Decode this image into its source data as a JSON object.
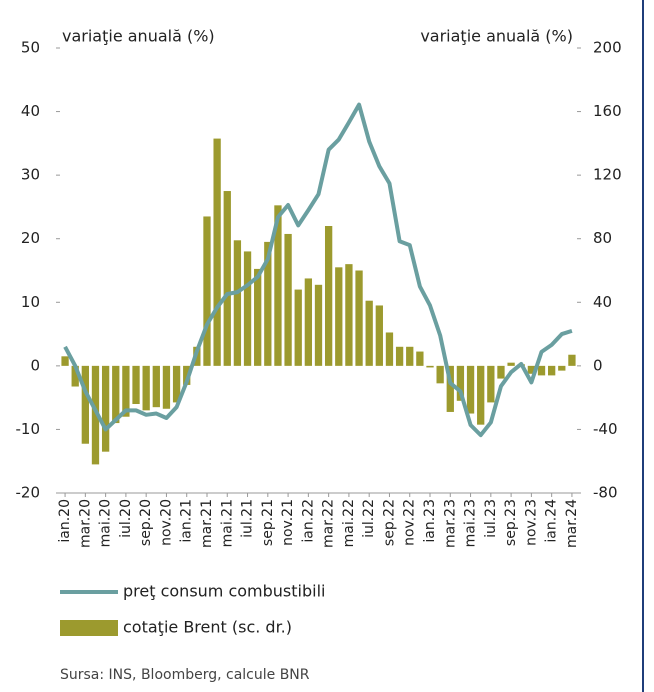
{
  "chart_data": {
    "type": "bar-line",
    "y_label": "variaţie anuală (%)",
    "y2_label": "variaţie anuală (%)",
    "source": "Sursa: INS, Bloomberg, calcule BNR",
    "categories": [
      "ian.20",
      null,
      "mar.20",
      null,
      "mai.20",
      null,
      "iul.20",
      null,
      "sep.20",
      null,
      "nov.20",
      null,
      "ian.21",
      null,
      "mar.21",
      null,
      "mai.21",
      null,
      "iul.21",
      null,
      "sep.21",
      null,
      "nov.21",
      null,
      "ian.22",
      null,
      "mar.22",
      null,
      "mai.22",
      null,
      "iul.22",
      null,
      "sep.22",
      null,
      "nov.22",
      null,
      "ian.23",
      null,
      "mar.23",
      null,
      "mai.23",
      null,
      "iul.23",
      null,
      "sep.23",
      null,
      "nov.23",
      null,
      "ian.24",
      null,
      "mar.24"
    ],
    "series": [
      {
        "name": "preţ consum combustibili",
        "color": "#6a9fa0",
        "kind": "line",
        "axis": "y",
        "values": [
          3,
          0,
          -4,
          -7,
          -10,
          -8.5,
          -7,
          -7,
          -7.7,
          -7.5,
          -8.2,
          -6.5,
          -2.5,
          2.3,
          6.5,
          9.2,
          11.3,
          11.6,
          12.7,
          14,
          16.8,
          23.4,
          25.3,
          22.1,
          24.5,
          27,
          34,
          35.6,
          38.3,
          41.1,
          35.3,
          31.4,
          28.7,
          19.6,
          19,
          12.5,
          9.5,
          4.8,
          -2.7,
          -4,
          -9.3,
          -10.9,
          -8.9,
          -3.2,
          -1,
          0.3,
          -2.6,
          2.2,
          3.3,
          5,
          5.5
        ]
      },
      {
        "name": "cotaţie Brent (sc. dr.)",
        "color": "#9c9a2e",
        "kind": "bar",
        "axis": "y2",
        "values": [
          6,
          -13,
          -49,
          -62,
          -54,
          -36,
          -32,
          -24,
          -28,
          -26,
          -27,
          -23,
          -12,
          12,
          94,
          143,
          110,
          79,
          72,
          61,
          78,
          101,
          83,
          48,
          55,
          51,
          88,
          62,
          64,
          60,
          41,
          38,
          21,
          12,
          12,
          9,
          -1,
          -11,
          -29,
          -22,
          -30,
          -37,
          -23,
          -8,
          2,
          1,
          -5,
          -6,
          -6,
          -3,
          7
        ]
      }
    ],
    "ylim": [
      -20,
      50
    ],
    "yticks": [
      -20,
      -10,
      0,
      10,
      20,
      30,
      40,
      50
    ],
    "y2lim": [
      -80,
      200
    ],
    "y2ticks": [
      -80,
      -40,
      0,
      40,
      80,
      120,
      160,
      200
    ]
  }
}
